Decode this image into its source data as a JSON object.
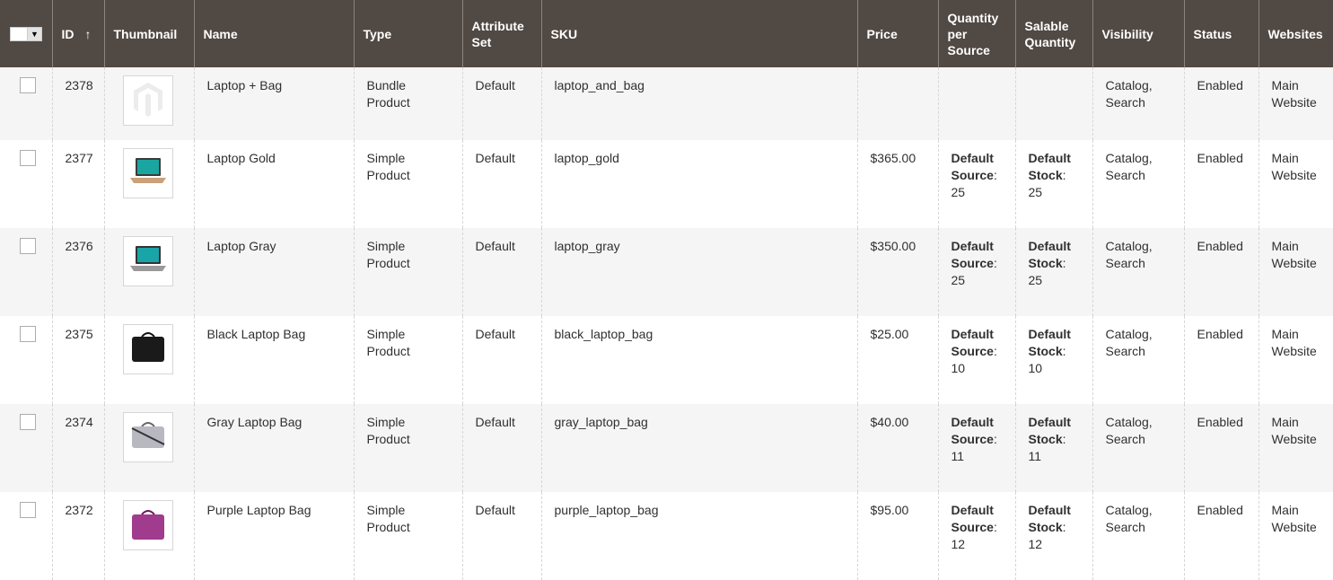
{
  "columns": {
    "id": "ID",
    "thumbnail": "Thumbnail",
    "name": "Name",
    "type": "Type",
    "attribute_set": "Attribute Set",
    "sku": "SKU",
    "price": "Price",
    "qty_per_source": "Quantity per Source",
    "salable_qty": "Salable Quantity",
    "visibility": "Visibility",
    "status": "Status",
    "websites": "Websites",
    "sort_icon": "↑"
  },
  "rows": [
    {
      "id": "2378",
      "thumb": "magento-placeholder",
      "name": "Laptop + Bag",
      "type": "Bundle Product",
      "attribute_set": "Default",
      "sku": "laptop_and_bag",
      "price": "",
      "qty_label": "",
      "qty": "",
      "stock_label": "",
      "stock": "",
      "visibility": "Catalog, Search",
      "status": "Enabled",
      "websites": "Main Website"
    },
    {
      "id": "2377",
      "thumb": "laptop-gold",
      "name": "Laptop Gold",
      "type": "Simple Product",
      "attribute_set": "Default",
      "sku": "laptop_gold",
      "price": "$365.00",
      "qty_label": "Default Source",
      "qty": "25",
      "stock_label": "Default Stock",
      "stock": "25",
      "visibility": "Catalog, Search",
      "status": "Enabled",
      "websites": "Main Website"
    },
    {
      "id": "2376",
      "thumb": "laptop-gray",
      "name": "Laptop Gray",
      "type": "Simple Product",
      "attribute_set": "Default",
      "sku": "laptop_gray",
      "price": "$350.00",
      "qty_label": "Default Source",
      "qty": "25",
      "stock_label": "Default Stock",
      "stock": "25",
      "visibility": "Catalog, Search",
      "status": "Enabled",
      "websites": "Main Website"
    },
    {
      "id": "2375",
      "thumb": "bag-black",
      "name": "Black Laptop Bag",
      "type": "Simple Product",
      "attribute_set": "Default",
      "sku": "black_laptop_bag",
      "price": "$25.00",
      "qty_label": "Default Source",
      "qty": "10",
      "stock_label": "Default Stock",
      "stock": "10",
      "visibility": "Catalog, Search",
      "status": "Enabled",
      "websites": "Main Website"
    },
    {
      "id": "2374",
      "thumb": "bag-gray",
      "name": "Gray Laptop Bag",
      "type": "Simple Product",
      "attribute_set": "Default",
      "sku": "gray_laptop_bag",
      "price": "$40.00",
      "qty_label": "Default Source",
      "qty": "11",
      "stock_label": "Default Stock",
      "stock": "11",
      "visibility": "Catalog, Search",
      "status": "Enabled",
      "websites": "Main Website"
    },
    {
      "id": "2372",
      "thumb": "bag-purple",
      "name": "Purple Laptop Bag",
      "type": "Simple Product",
      "attribute_set": "Default",
      "sku": "purple_laptop_bag",
      "price": "$95.00",
      "qty_label": "Default Source",
      "qty": "12",
      "stock_label": "Default Stock",
      "stock": "12",
      "visibility": "Catalog, Search",
      "status": "Enabled",
      "websites": "Main Website"
    }
  ],
  "colors": {
    "header": "#514943",
    "row_alt": "#f5f5f5"
  }
}
